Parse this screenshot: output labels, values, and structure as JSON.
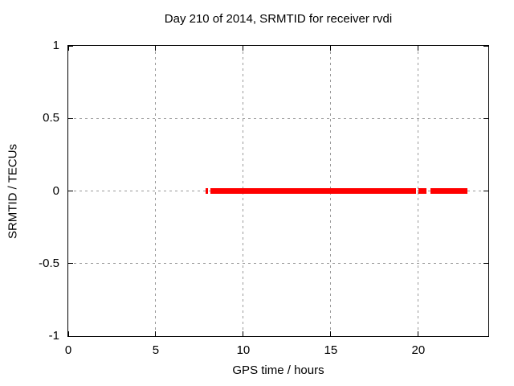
{
  "chart_data": {
    "type": "line",
    "title": "Day 210 of 2014, SRMTID for receiver rvdi",
    "xlabel": "GPS time / hours",
    "ylabel": "SRMTID / TECUs",
    "xlim": [
      0,
      24
    ],
    "ylim": [
      -1,
      1
    ],
    "grid": true,
    "legend": "none",
    "background_color": "#ffffff",
    "frame_color": "#000000",
    "grid_color": "#9a9a9a",
    "tick_color": "#000000",
    "xticks": [
      {
        "value": 0,
        "label": "0"
      },
      {
        "value": 5,
        "label": "5"
      },
      {
        "value": 10,
        "label": "10"
      },
      {
        "value": 15,
        "label": "15"
      },
      {
        "value": 20,
        "label": "20"
      }
    ],
    "yticks": [
      {
        "value": 1,
        "label": "1"
      },
      {
        "value": 0.5,
        "label": "0.5"
      },
      {
        "value": 0,
        "label": "0"
      },
      {
        "value": -0.5,
        "label": "-0.5"
      },
      {
        "value": -1,
        "label": "-1"
      }
    ],
    "series": [
      {
        "name": "SRMTID",
        "color": "#ff0000",
        "y_value": 0,
        "line_thickness_px": 7,
        "segments_x_hours": [
          [
            7.85,
            7.99
          ],
          [
            8.12,
            19.87
          ],
          [
            20.01,
            20.47
          ],
          [
            20.7,
            22.81
          ]
        ]
      }
    ]
  }
}
